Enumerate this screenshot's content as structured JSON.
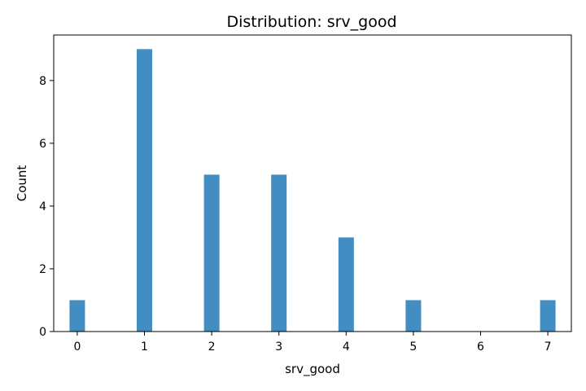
{
  "chart_data": {
    "type": "bar",
    "title": "Distribution: srv_good",
    "xlabel": "srv_good",
    "ylabel": "Count",
    "x": [
      0,
      1,
      2,
      3,
      4,
      5,
      7
    ],
    "values": [
      1,
      9,
      5,
      5,
      3,
      1,
      1
    ],
    "xticks": [
      "0",
      "1",
      "2",
      "3",
      "4",
      "5",
      "6",
      "7"
    ],
    "yticks": [
      "0",
      "2",
      "4",
      "6",
      "8"
    ],
    "xlim": [
      -0.35,
      7.35
    ],
    "ylim": [
      0,
      9.45
    ],
    "grid": false,
    "bar_color": "#428dc1"
  }
}
